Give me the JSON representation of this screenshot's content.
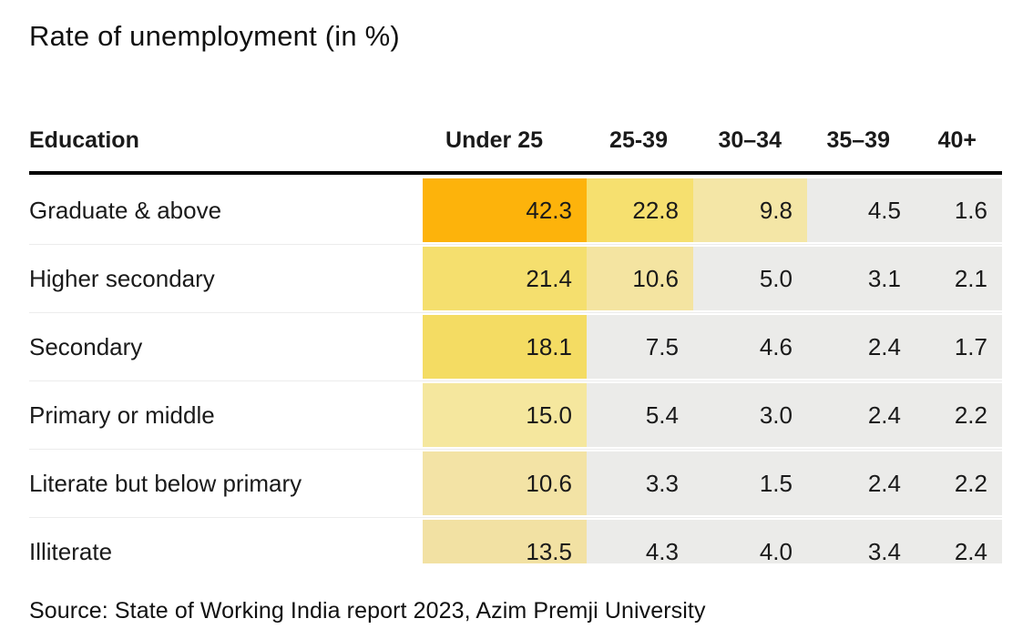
{
  "title": "Rate of unemployment (in %)",
  "source": "Source: State of Working India report 2023, Azim Premji University",
  "palette": {
    "high": "#FDB30B",
    "medium": "#F5DF6C",
    "low": "#F3E4A4",
    "minimal": "#EBEBE9"
  },
  "table": {
    "label_header": "Education",
    "columns": [
      "Under 25",
      "25-39",
      "30–34",
      "35–39",
      "40+"
    ],
    "rows": [
      {
        "label": "Graduate & above",
        "cells": [
          {
            "value": "42.3",
            "color": "#FDB30B"
          },
          {
            "value": "22.8",
            "color": "#F6E06F"
          },
          {
            "value": "9.8",
            "color": "#F4E6A6"
          },
          {
            "value": "4.5",
            "color": "#EBEBE9"
          },
          {
            "value": "1.6",
            "color": "#EBEBE9"
          }
        ]
      },
      {
        "label": "Higher secondary",
        "cells": [
          {
            "value": "21.4",
            "color": "#F5DF6E"
          },
          {
            "value": "10.6",
            "color": "#F4E4A1"
          },
          {
            "value": "5.0",
            "color": "#EBEBE9"
          },
          {
            "value": "3.1",
            "color": "#EBEBE9"
          },
          {
            "value": "2.1",
            "color": "#EBEBE9"
          }
        ]
      },
      {
        "label": "Secondary",
        "cells": [
          {
            "value": "18.1",
            "color": "#F4DC63"
          },
          {
            "value": "7.5",
            "color": "#EBEBE9"
          },
          {
            "value": "4.6",
            "color": "#EBEBE9"
          },
          {
            "value": "2.4",
            "color": "#EBEBE9"
          },
          {
            "value": "1.7",
            "color": "#EBEBE9"
          }
        ]
      },
      {
        "label": "Primary or middle",
        "cells": [
          {
            "value": "15.0",
            "color": "#F5E79E"
          },
          {
            "value": "5.4",
            "color": "#EBEBE9"
          },
          {
            "value": "3.0",
            "color": "#EBEBE9"
          },
          {
            "value": "2.4",
            "color": "#EBEBE9"
          },
          {
            "value": "2.2",
            "color": "#EBEBE9"
          }
        ]
      },
      {
        "label": "Literate but below primary",
        "cells": [
          {
            "value": "10.6",
            "color": "#F3E3A5"
          },
          {
            "value": "3.3",
            "color": "#EBEBE9"
          },
          {
            "value": "1.5",
            "color": "#EBEBE9"
          },
          {
            "value": "2.4",
            "color": "#EBEBE9"
          },
          {
            "value": "2.2",
            "color": "#EBEBE9"
          }
        ]
      },
      {
        "label": "Illiterate",
        "cells": [
          {
            "value": "13.5",
            "color": "#F2E1A3"
          },
          {
            "value": "4.3",
            "color": "#EBEBE9"
          },
          {
            "value": "4.0",
            "color": "#EBEBE9"
          },
          {
            "value": "3.4",
            "color": "#EBEBE9"
          },
          {
            "value": "2.4",
            "color": "#EBEBE9"
          }
        ]
      }
    ]
  },
  "chart_data": {
    "type": "heatmap",
    "title": "Rate of unemployment (in %)",
    "row_header": "Education",
    "columns": [
      "Under 25",
      "25-39",
      "30–34",
      "35–39",
      "40+"
    ],
    "rows": [
      "Graduate & above",
      "Higher secondary",
      "Secondary",
      "Primary or middle",
      "Literate but below primary",
      "Illiterate"
    ],
    "values": [
      [
        42.3,
        22.8,
        9.8,
        4.5,
        1.6
      ],
      [
        21.4,
        10.6,
        5.0,
        3.1,
        2.1
      ],
      [
        18.1,
        7.5,
        4.6,
        2.4,
        1.7
      ],
      [
        15.0,
        5.4,
        3.0,
        2.4,
        2.2
      ],
      [
        10.6,
        3.3,
        1.5,
        2.4,
        2.2
      ],
      [
        13.5,
        4.3,
        4.0,
        3.4,
        2.4
      ]
    ],
    "color_scale": {
      "high": "#FDB30B",
      "medium": "#F5DF6C",
      "low": "#F3E4A4",
      "minimal": "#EBEBE9"
    },
    "legend": "none",
    "source": "Source: State of Working India report 2023, Azim Premji University"
  }
}
